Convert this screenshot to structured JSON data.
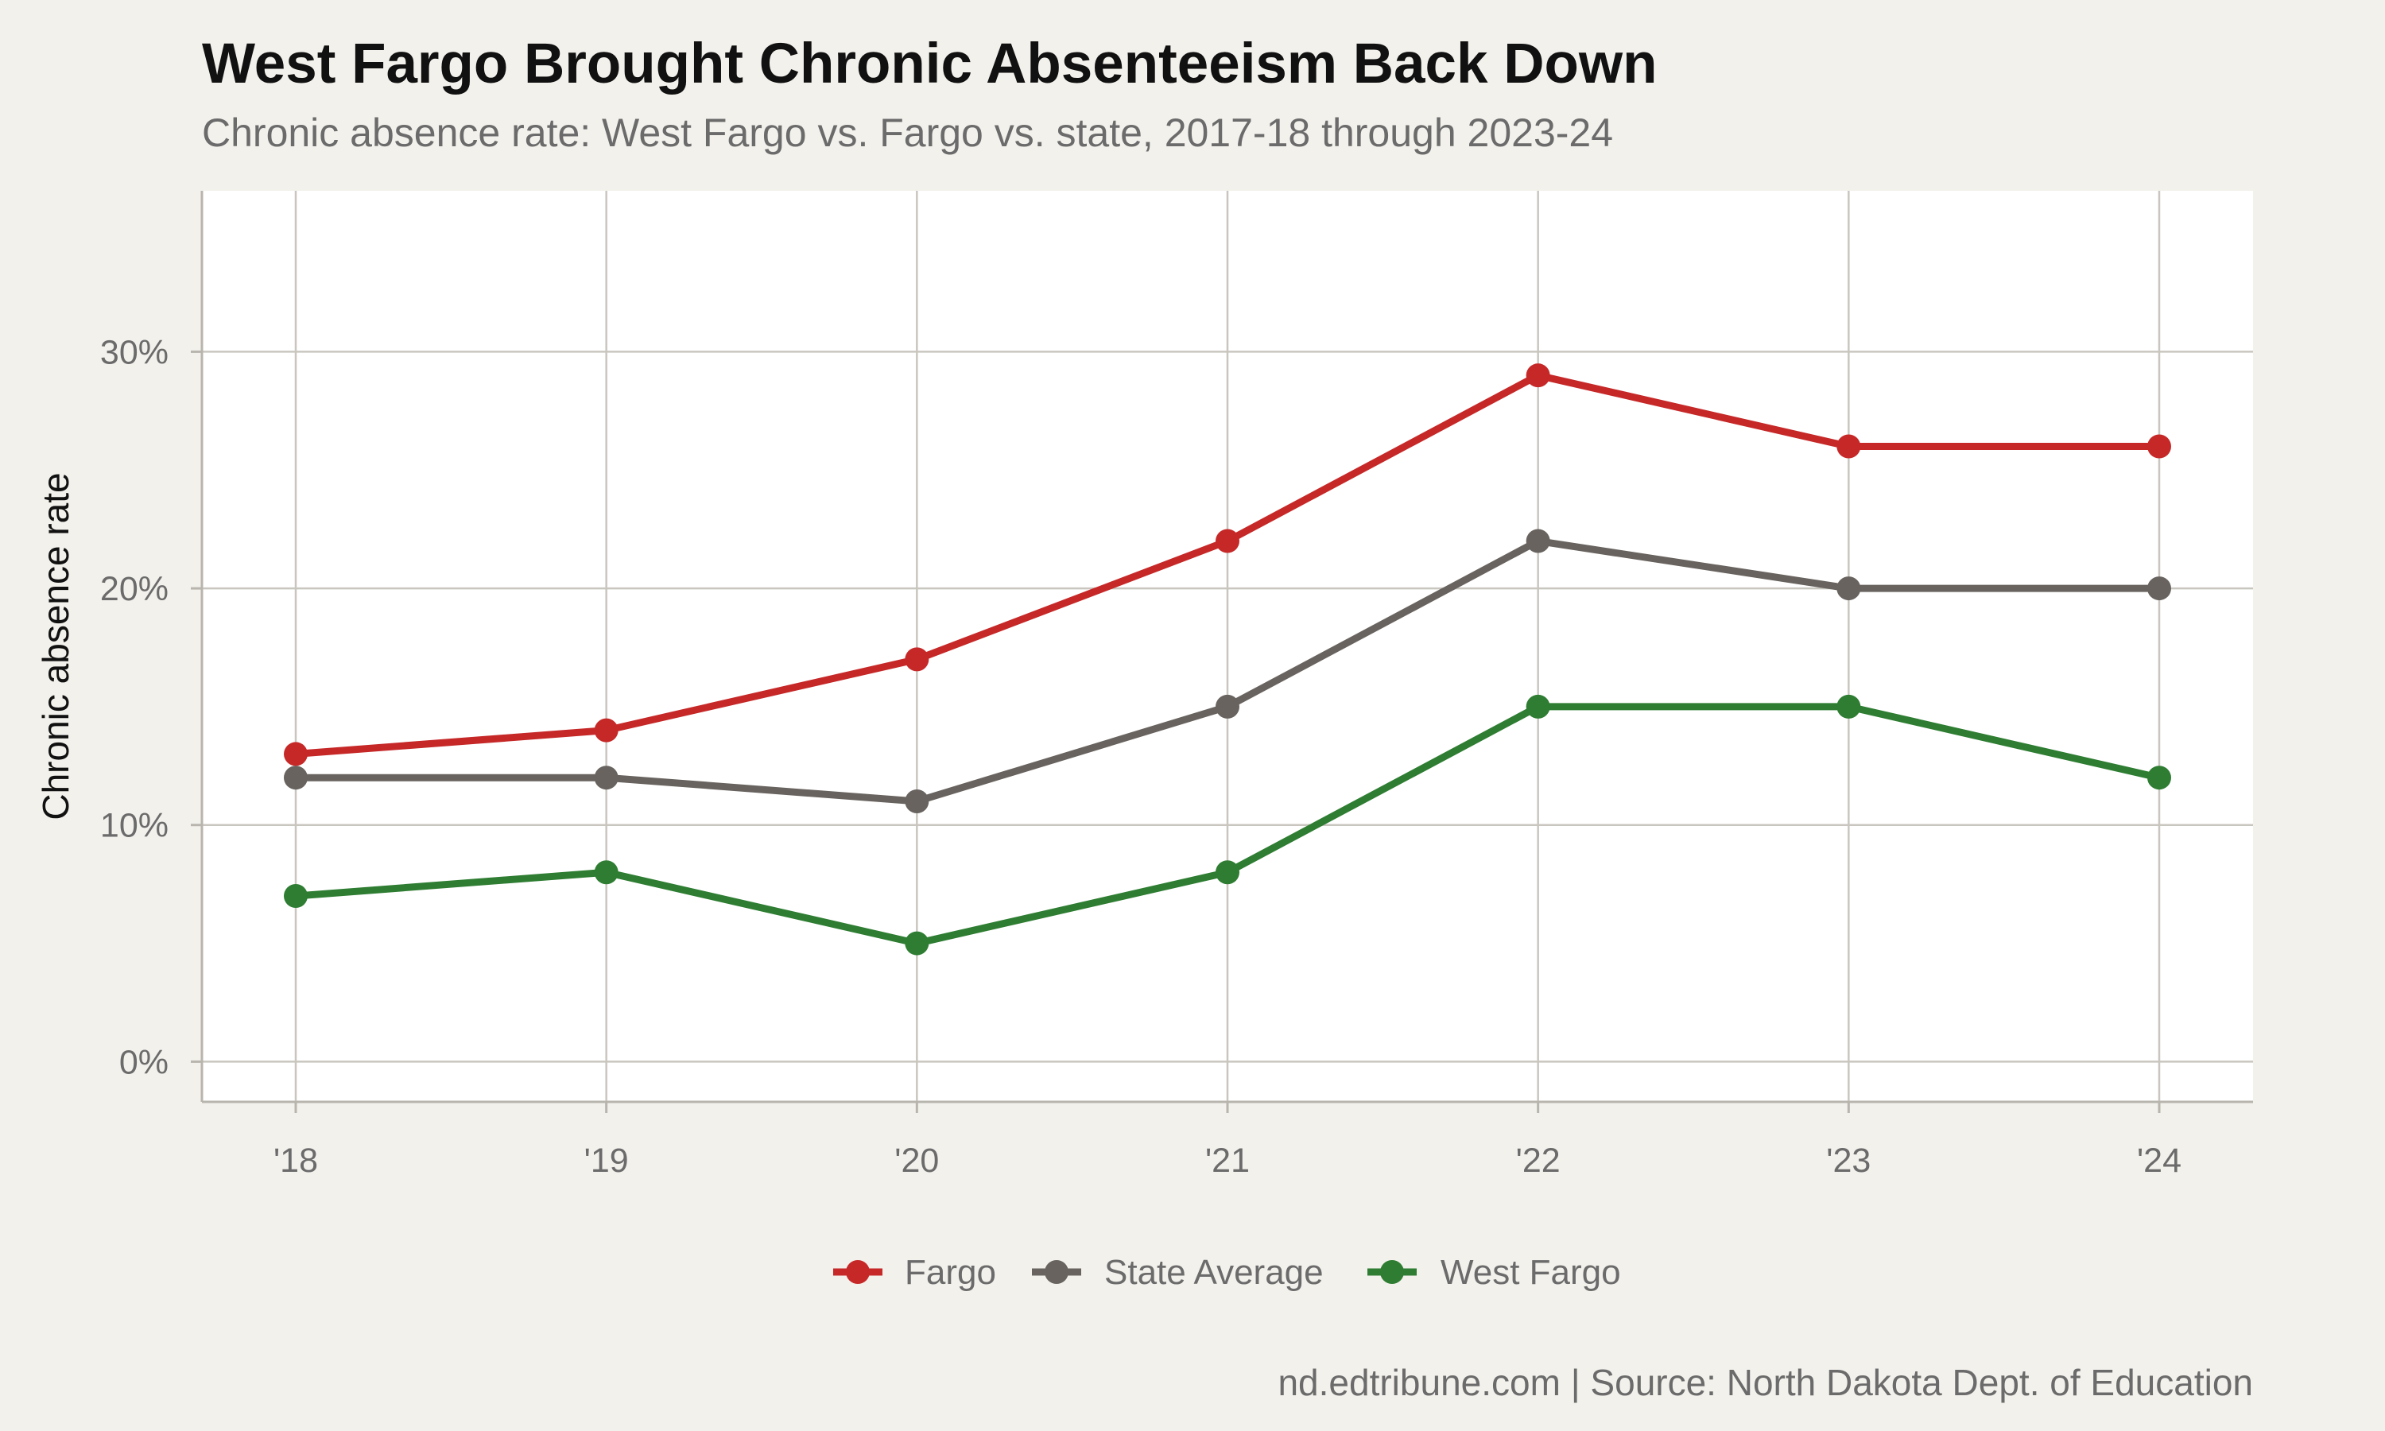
{
  "chart_data": {
    "type": "line",
    "title": "West Fargo Brought Chronic Absenteeism Back Down",
    "subtitle": "Chronic absence rate: West Fargo vs. Fargo vs. state, 2017-18 through 2023-24",
    "caption": "nd.edtribune.com | Source: North Dakota Dept. of Education",
    "xlabel": "",
    "ylabel": "Chronic absence rate",
    "categories": [
      "'18",
      "'19",
      "'20",
      "'21",
      "'22",
      "'23",
      "'24"
    ],
    "ylim": [
      -1.7,
      36.8
    ],
    "yticks": [
      0,
      10,
      20,
      30
    ],
    "ytick_labels": [
      "0%",
      "10%",
      "20%",
      "30%"
    ],
    "grid": true,
    "legend_position": "bottom",
    "series": [
      {
        "name": "Fargo",
        "color": "#c62828",
        "values": [
          13,
          14,
          17,
          22,
          29,
          26,
          26
        ]
      },
      {
        "name": "State Average",
        "color": "#68635f",
        "values": [
          12,
          12,
          11,
          15,
          22,
          20,
          20
        ]
      },
      {
        "name": "West Fargo",
        "color": "#2e7d32",
        "values": [
          7,
          8,
          5,
          8,
          15,
          15,
          12
        ]
      }
    ]
  }
}
